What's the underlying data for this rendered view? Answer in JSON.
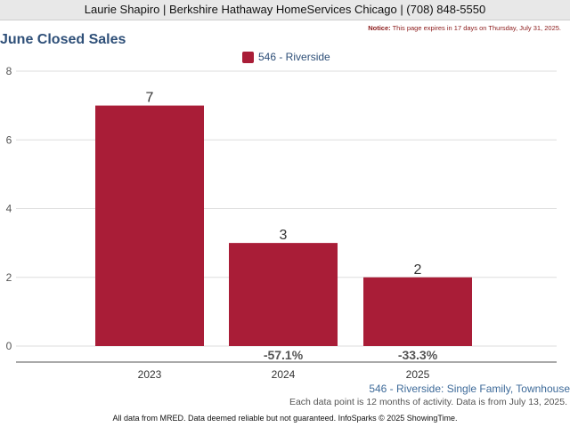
{
  "header": {
    "agent_line": "Laurie Shapiro | Berkshire Hathaway HomeServices Chicago | (708) 848-5550"
  },
  "notice": {
    "label": "Notice:",
    "text": "This page expires in 17 days on Thursday, July 31, 2025."
  },
  "footer": {
    "series_caption": "546 - Riverside: Single Family, Townhouse",
    "data_note": "Each data point is 12 months of activity. Data is from July 13, 2025.",
    "credit": "All data from MRED. Data deemed reliable but not guaranteed. InfoSparks © 2025 ShowingTime."
  },
  "colors": {
    "bar": "#a91d37",
    "title": "#2e4f78",
    "grid": "#dddddd",
    "axis": "#555555"
  },
  "chart_data": {
    "type": "bar",
    "title": "June Closed Sales",
    "categories": [
      "2023",
      "2024",
      "2025"
    ],
    "series": [
      {
        "name": "546 - Riverside",
        "values": [
          7,
          3,
          2
        ],
        "data_labels": [
          "7",
          "3",
          "2"
        ],
        "change_labels": [
          "",
          "-57.1%",
          "-33.3%"
        ]
      }
    ],
    "yticks": [
      "0",
      "2",
      "4",
      "6",
      "8"
    ],
    "ylim": [
      0,
      8
    ],
    "grid": true,
    "legend": "top-center"
  }
}
